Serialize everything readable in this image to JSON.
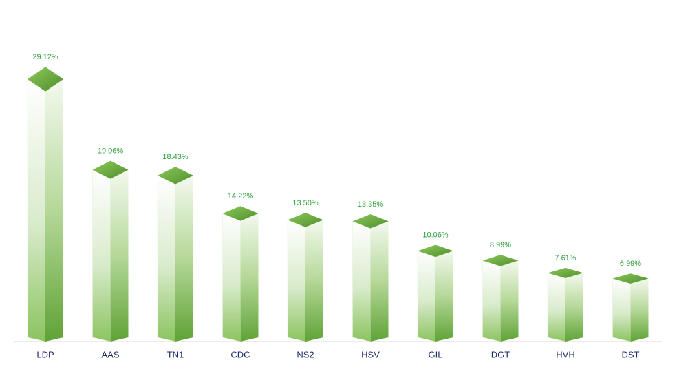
{
  "chart_data": {
    "type": "bar3d",
    "categories": [
      "LDP",
      "AAS",
      "TN1",
      "CDC",
      "NS2",
      "HSV",
      "GIL",
      "DGT",
      "HVH",
      "DST"
    ],
    "values": [
      29.12,
      19.06,
      18.43,
      14.22,
      13.5,
      13.35,
      10.06,
      8.99,
      7.61,
      6.99
    ],
    "value_labels": [
      "29.12%",
      "19.06%",
      "18.43%",
      "14.22%",
      "13.50%",
      "13.35%",
      "10.06%",
      "8.99%",
      "7.61%",
      "6.99%"
    ],
    "color": "#6aac3f"
  }
}
